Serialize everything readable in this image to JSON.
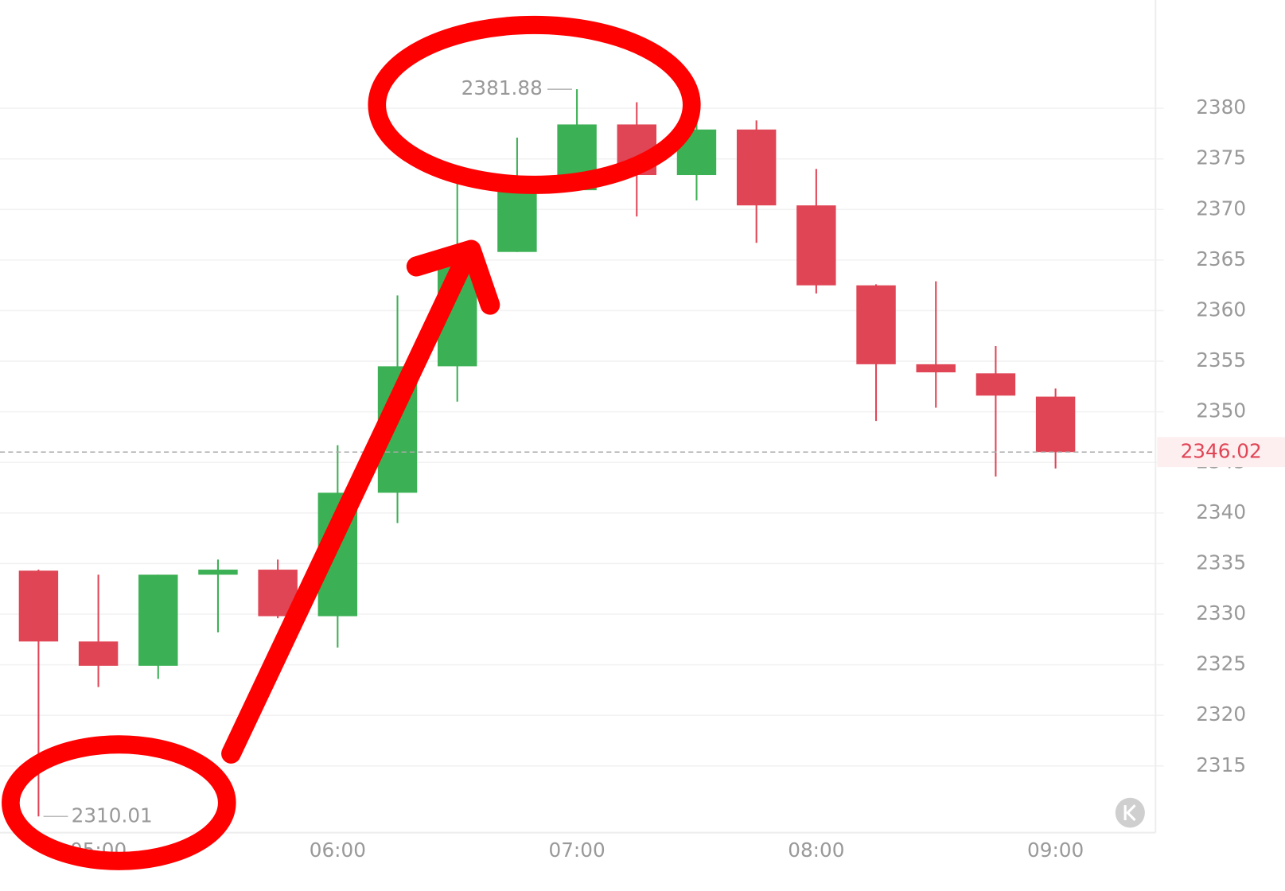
{
  "chart_data": {
    "type": "candlestick",
    "categories": [
      null,
      "05:00",
      null,
      null,
      null,
      "06:00",
      null,
      null,
      null,
      "07:00",
      null,
      null,
      null,
      "08:00",
      null,
      null,
      null,
      "09:00"
    ],
    "series": [
      {
        "name": "open",
        "values": [
          2334.3,
          2327.3,
          2324.9,
          2333.9,
          2334.4,
          2329.8,
          2342.0,
          2354.5,
          2365.8,
          2371.9,
          2378.4,
          2373.4,
          2377.9,
          2370.4,
          2362.5,
          2354.7,
          2353.8,
          2351.5
        ]
      },
      {
        "name": "high",
        "values": [
          2334.4,
          2333.9,
          2333.9,
          2335.4,
          2335.4,
          2346.7,
          2361.5,
          2373.0,
          2377.1,
          2381.88,
          2380.6,
          2379.2,
          2378.8,
          2374.0,
          2362.6,
          2362.9,
          2356.5,
          2352.3
        ]
      },
      {
        "name": "low",
        "values": [
          2310.01,
          2322.8,
          2323.6,
          2328.2,
          2329.6,
          2326.7,
          2339.0,
          2351.0,
          2365.8,
          2371.9,
          2369.3,
          2370.9,
          2366.7,
          2361.7,
          2349.1,
          2350.4,
          2343.6,
          2344.4
        ]
      },
      {
        "name": "close",
        "values": [
          2327.3,
          2324.9,
          2333.9,
          2334.4,
          2329.8,
          2342.0,
          2354.5,
          2365.8,
          2371.9,
          2378.4,
          2373.4,
          2377.9,
          2370.4,
          2362.5,
          2354.7,
          2353.9,
          2351.6,
          2346.02
        ]
      }
    ],
    "up_color": "#3cb054",
    "down_color": "#e04555",
    "ylim": [
      2308.4,
      2390.7
    ],
    "yticks": [
      2315,
      2320,
      2325,
      2330,
      2335,
      2340,
      2345,
      2350,
      2355,
      2360,
      2365,
      2370,
      2375,
      2380
    ],
    "grid": true,
    "max_price": 2381.88,
    "min_price": 2310.01,
    "last_price": 2346.02
  }
}
